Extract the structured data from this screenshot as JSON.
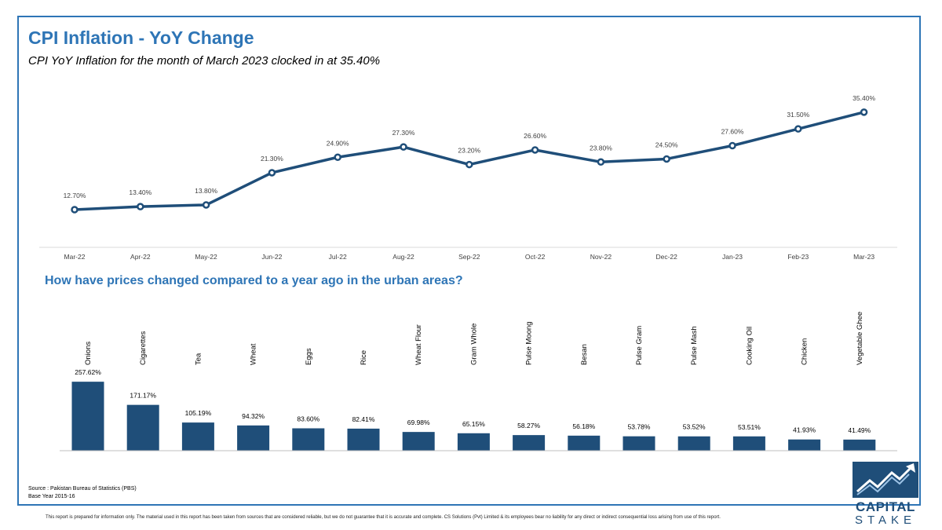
{
  "header": {
    "title": "CPI Inflation - YoY Change",
    "subtitle": "CPI YoY Inflation for the month of March 2023 clocked in at 35.40%"
  },
  "section": {
    "urban_title": "How have prices changed compared to a year ago in the urban areas?"
  },
  "footer": {
    "source": "Source : Pakistan Bureau of Statistics (PBS)",
    "base_year": "Base Year 2015-16",
    "disclaimer": "This report is prepared for information only. The material used in this report has been taken from sources that are considered reliable, but we do not guarantee that it is accurate and complete. CS Solutions (Pvt) Limited & its employees bear no liability for any direct or indirect consequential loss arising from use of this report."
  },
  "logo": {
    "line1": "CAPITAL",
    "line2": "STAKE"
  },
  "colors": {
    "accent": "#2e75b6",
    "line": "#1f4e79",
    "bar": "#1f4e79"
  },
  "chart_data": [
    {
      "type": "line",
      "x": [
        "Mar-22",
        "Apr-22",
        "May-22",
        "Jun-22",
        "Jul-22",
        "Aug-22",
        "Sep-22",
        "Oct-22",
        "Nov-22",
        "Dec-22",
        "Jan-23",
        "Feb-23",
        "Mar-23"
      ],
      "values": [
        12.7,
        13.4,
        13.8,
        21.3,
        24.9,
        27.3,
        23.2,
        26.6,
        23.8,
        24.5,
        27.6,
        31.5,
        35.4
      ],
      "labels": [
        "12.70%",
        "13.40%",
        "13.80%",
        "21.30%",
        "24.90%",
        "27.30%",
        "23.20%",
        "26.60%",
        "23.80%",
        "24.50%",
        "27.60%",
        "31.50%",
        "35.40%"
      ],
      "ylabel": "",
      "grid": false
    },
    {
      "type": "bar",
      "categories": [
        "Onions",
        "Cigarettes",
        "Tea",
        "Wheat",
        "Eggs",
        "Rice",
        "Wheat Flour",
        "Gram Whole",
        "Pulse Moong",
        "Besan",
        "Pulse Gram",
        "Pulse Mash",
        "Cooking Oil",
        "Chicken",
        "Vegetable Ghee"
      ],
      "values": [
        257.62,
        171.17,
        105.19,
        94.32,
        83.6,
        82.41,
        69.98,
        65.15,
        58.27,
        56.18,
        53.78,
        53.52,
        53.51,
        41.93,
        41.49
      ],
      "labels": [
        "257.62%",
        "171.17%",
        "105.19%",
        "94.32%",
        "83.60%",
        "82.41%",
        "69.98%",
        "65.15%",
        "58.27%",
        "56.18%",
        "53.78%",
        "53.52%",
        "53.51%",
        "41.93%",
        "41.49%"
      ],
      "grid": false
    }
  ]
}
